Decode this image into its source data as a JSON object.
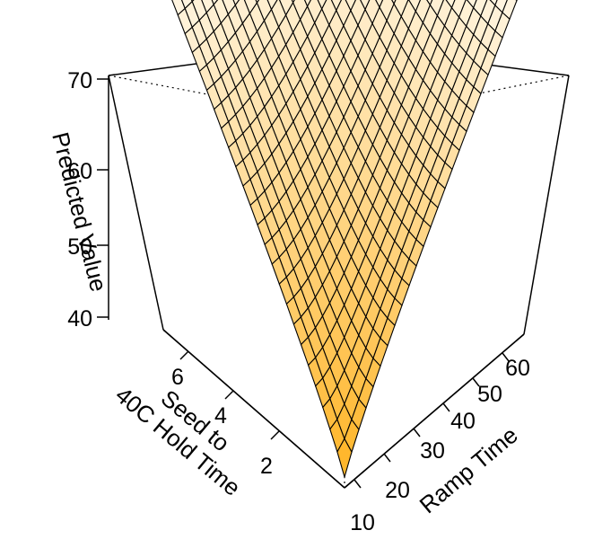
{
  "chart_data": {
    "type": "surface3d",
    "zlabel": "Predicted Value",
    "ylabel": "Seed to\n40C Hold Time",
    "xlabel": "Ramp Time",
    "z_ticks": [
      "40",
      "50",
      "60",
      "70"
    ],
    "y_ticks": [
      "2",
      "4",
      "6"
    ],
    "x_ticks": [
      "10",
      "20",
      "30",
      "40",
      "50",
      "60"
    ],
    "zlim": [
      37,
      71
    ],
    "ylim": [
      0,
      8
    ],
    "xlim": [
      10,
      65
    ],
    "surface_color_low": "#FFB21E",
    "surface_color_high": "#FFFBF3",
    "mesh_color": "#000000",
    "description_values": {
      "min_predicted": 37.5,
      "max_predicted": 70.5
    }
  }
}
